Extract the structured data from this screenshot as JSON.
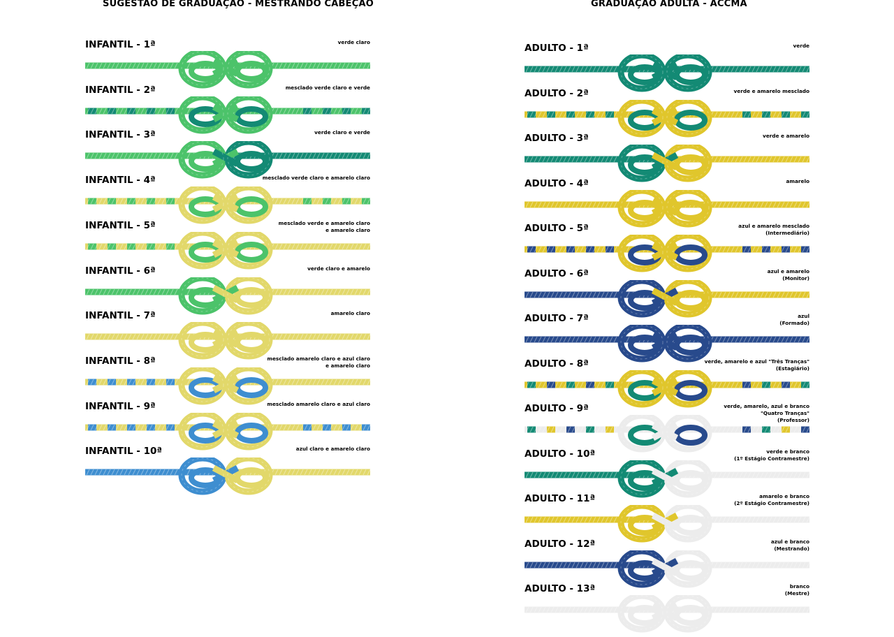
{
  "colors": {
    "verde_claro": "#4cc36a",
    "verde": "#138a74",
    "amarelo_claro": "#e2d86a",
    "amarelo": "#e0c62c",
    "azul_claro": "#3e8ed0",
    "azul": "#284a8c",
    "branco": "#ececec"
  },
  "left": {
    "title": "SUGESTÃO DE GRADUAÇÃO - MESTRANDO CABEÇÃO",
    "rows": [
      {
        "label": "INFANTIL - 1ª",
        "desc": "verde claro",
        "left": "verde_claro",
        "right": "verde_claro"
      },
      {
        "label": "INFANTIL - 2ª",
        "desc": "mesclado verde claro e verde",
        "left": "verde_claro",
        "right": "verde_claro",
        "stripe": [
          "verde"
        ]
      },
      {
        "label": "INFANTIL - 3ª",
        "desc": "verde claro e verde",
        "left": "verde_claro",
        "right": "verde"
      },
      {
        "label": "INFANTIL - 4ª",
        "desc": "mesclado verde claro e amarelo claro",
        "left": "amarelo_claro",
        "right": "amarelo_claro",
        "stripe": [
          "verde_claro"
        ]
      },
      {
        "label": "INFANTIL - 5ª",
        "desc": "mesclado verde e amarelo claro\ne amarelo claro",
        "left": "amarelo_claro",
        "right": "amarelo_claro",
        "stripe": [
          "verde_claro"
        ],
        "stripeLeftOnly": true
      },
      {
        "label": "INFANTIL - 6ª",
        "desc": "verde claro e amarelo",
        "left": "verde_claro",
        "right": "amarelo_claro"
      },
      {
        "label": "INFANTIL - 7ª",
        "desc": "amarelo claro",
        "left": "amarelo_claro",
        "right": "amarelo_claro"
      },
      {
        "label": "INFANTIL - 8ª",
        "desc": "mesclado amarelo claro e azul claro\ne amarelo claro",
        "left": "amarelo_claro",
        "right": "amarelo_claro",
        "stripe": [
          "azul_claro"
        ],
        "stripeLeftOnly": true
      },
      {
        "label": "INFANTIL - 9ª",
        "desc": "mesclado amarelo claro e azul claro",
        "left": "amarelo_claro",
        "right": "amarelo_claro",
        "stripe": [
          "azul_claro"
        ]
      },
      {
        "label": "INFANTIL - 10ª",
        "desc": "azul claro e amarelo claro",
        "left": "azul_claro",
        "right": "amarelo_claro"
      }
    ]
  },
  "right": {
    "title": "GRADUAÇÃO ADULTA - ACCMA",
    "rows": [
      {
        "label": "ADULTO - 1ª",
        "desc": "verde",
        "left": "verde",
        "right": "verde"
      },
      {
        "label": "ADULTO - 2ª",
        "desc": "verde e amarelo mesclado",
        "left": "amarelo",
        "right": "amarelo",
        "stripe": [
          "verde"
        ]
      },
      {
        "label": "ADULTO - 3ª",
        "desc": "verde e amarelo",
        "left": "verde",
        "right": "amarelo"
      },
      {
        "label": "ADULTO - 4ª",
        "desc": "amarelo",
        "left": "amarelo",
        "right": "amarelo"
      },
      {
        "label": "ADULTO - 5ª",
        "desc": "azul e amarelo mesclado\n(Intermediário)",
        "left": "amarelo",
        "right": "amarelo",
        "stripe": [
          "azul"
        ]
      },
      {
        "label": "ADULTO - 6ª",
        "desc": "azul e amarelo\n(Monitor)",
        "left": "azul",
        "right": "amarelo"
      },
      {
        "label": "ADULTO - 7ª",
        "desc": "azul\n(Formado)",
        "left": "azul",
        "right": "azul"
      },
      {
        "label": "ADULTO - 8ª",
        "desc": "verde, amarelo e azul \"Três Tranças\"\n(Estagiário)",
        "left": "amarelo",
        "right": "amarelo",
        "stripe": [
          "verde",
          "azul"
        ]
      },
      {
        "label": "ADULTO - 9ª",
        "desc": "verde, amarelo, azul e branco\n\"Quatro Tranças\"\n(Professor)",
        "left": "branco",
        "right": "branco",
        "stripe": [
          "verde",
          "amarelo",
          "azul"
        ]
      },
      {
        "label": "ADULTO - 10ª",
        "desc": "verde e branco\n(1º Estágio Contramestre)",
        "left": "verde",
        "right": "branco"
      },
      {
        "label": "ADULTO - 11ª",
        "desc": "amarelo e branco\n(2º Estágio Contramestre)",
        "left": "amarelo",
        "right": "branco"
      },
      {
        "label": "ADULTO - 12ª",
        "desc": "azul e branco\n(Mestrando)",
        "left": "azul",
        "right": "branco"
      },
      {
        "label": "ADULTO - 13ª",
        "desc": "branco\n(Mestre)",
        "left": "branco",
        "right": "branco"
      }
    ]
  }
}
